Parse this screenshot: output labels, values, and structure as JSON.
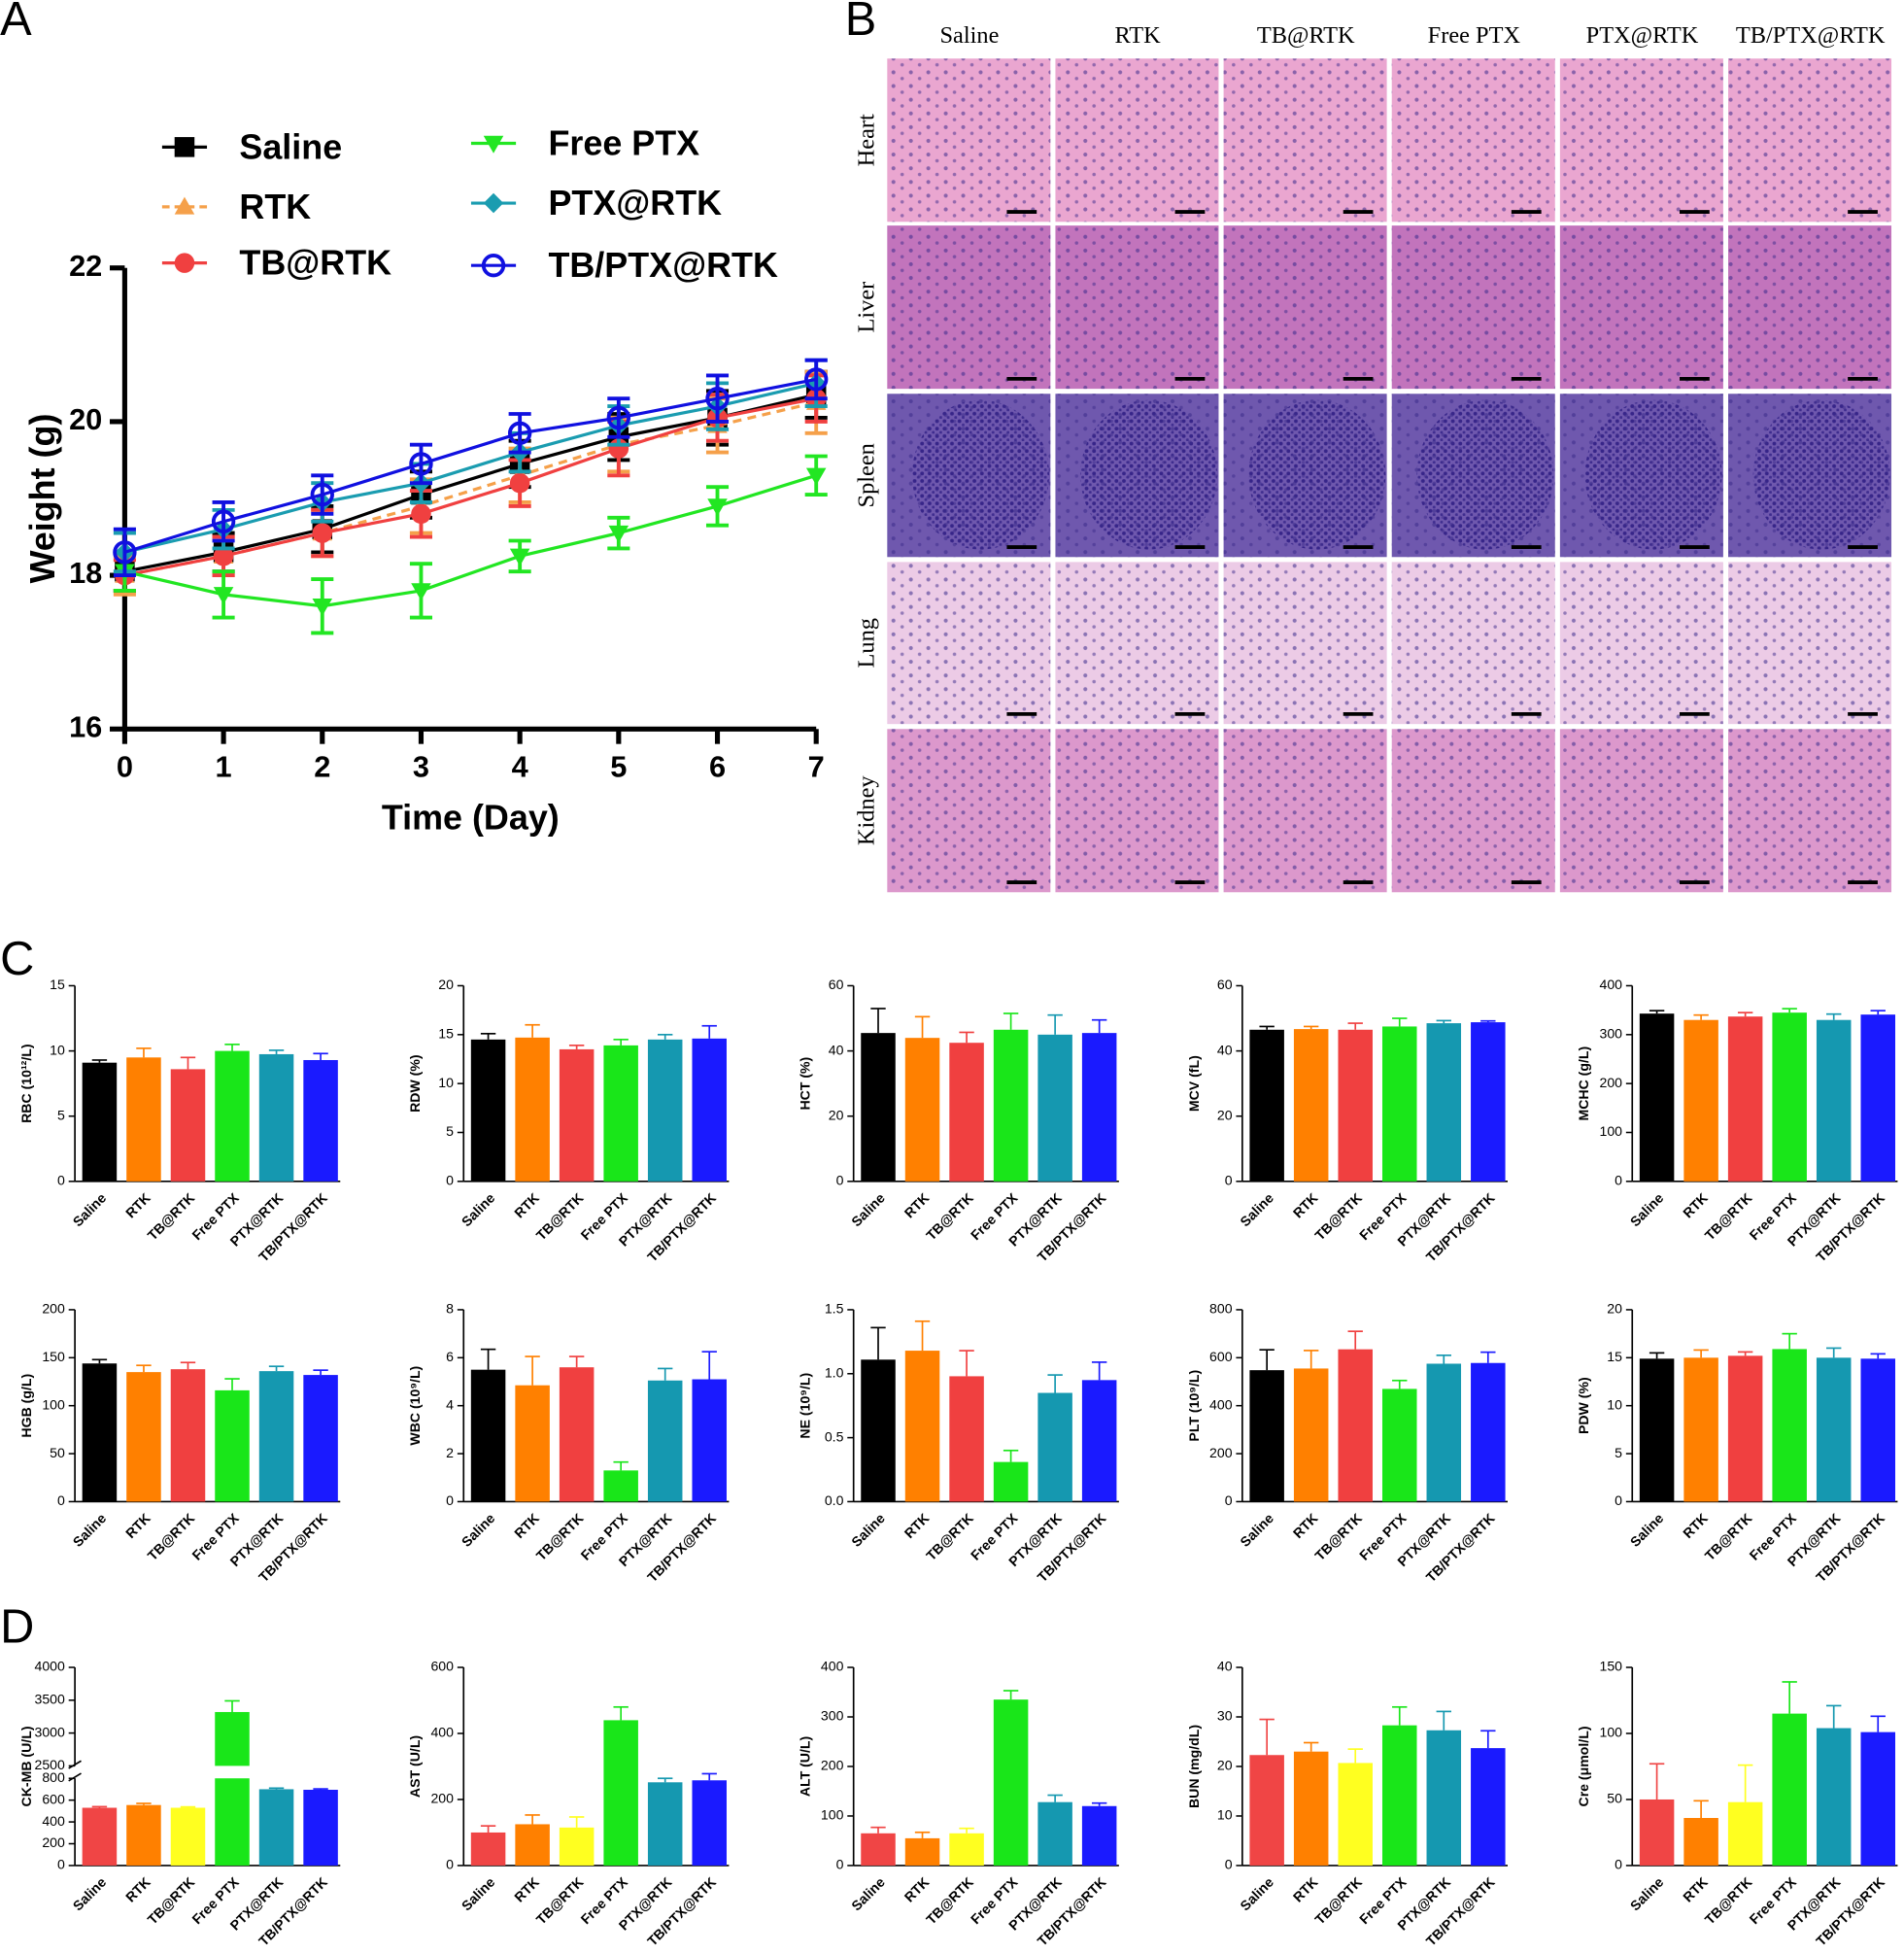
{
  "panel_labels": [
    "A",
    "B",
    "C",
    "D"
  ],
  "histology": {
    "columns": [
      "Saline",
      "RTK",
      "TB@RTK",
      "Free PTX",
      "PTX@RTK",
      "TB/PTX@RTK"
    ],
    "rows": [
      "Heart",
      "Liver",
      "Spleen",
      "Lung",
      "Kidney"
    ]
  },
  "chart_data": [
    {
      "type": "line",
      "xlabel": "Time (Day)",
      "ylabel": "Weight (g)",
      "x": [
        0,
        1,
        2,
        3,
        4,
        5,
        6,
        7
      ],
      "xlim": [
        0,
        7
      ],
      "xticks": [
        0,
        1,
        2,
        3,
        4,
        5,
        6,
        7
      ],
      "ylim": [
        16,
        22
      ],
      "yticks": [
        16,
        18,
        20,
        22
      ],
      "series": [
        {
          "name": "Saline",
          "color": "#000000",
          "marker": "square",
          "dashed": false,
          "values": [
            18.05,
            18.3,
            18.6,
            19.05,
            19.45,
            19.8,
            20.05,
            20.35
          ],
          "errors": [
            0.25,
            0.25,
            0.3,
            0.3,
            0.3,
            0.3,
            0.35,
            0.3
          ]
        },
        {
          "name": "RTK",
          "color": "#f5a04a",
          "marker": "triangle",
          "dashed": true,
          "values": [
            18.0,
            18.25,
            18.55,
            18.9,
            19.3,
            19.7,
            19.95,
            20.25
          ],
          "errors": [
            0.25,
            0.25,
            0.3,
            0.35,
            0.35,
            0.35,
            0.35,
            0.4
          ]
        },
        {
          "name": "TB@RTK",
          "color": "#f04040",
          "marker": "circle",
          "dashed": false,
          "values": [
            18.0,
            18.25,
            18.55,
            18.8,
            19.2,
            19.65,
            20.05,
            20.3
          ],
          "errors": [
            0.2,
            0.25,
            0.3,
            0.3,
            0.3,
            0.35,
            0.3,
            0.3
          ]
        },
        {
          "name": "Free PTX",
          "color": "#22e622",
          "marker": "down-triangle",
          "dashed": false,
          "values": [
            18.05,
            17.75,
            17.6,
            17.8,
            18.25,
            18.55,
            18.9,
            19.3
          ],
          "errors": [
            0.25,
            0.3,
            0.35,
            0.35,
            0.2,
            0.2,
            0.25,
            0.25
          ]
        },
        {
          "name": "PTX@RTK",
          "color": "#1a9cb0",
          "marker": "diamond",
          "dashed": false,
          "values": [
            18.3,
            18.6,
            18.95,
            19.2,
            19.6,
            19.95,
            20.2,
            20.5
          ],
          "errors": [
            0.25,
            0.25,
            0.25,
            0.25,
            0.25,
            0.25,
            0.3,
            0.3
          ]
        },
        {
          "name": "TB/PTX@RTK",
          "color": "#1010e0",
          "marker": "open-circle",
          "dashed": false,
          "values": [
            18.3,
            18.7,
            19.05,
            19.45,
            19.85,
            20.05,
            20.3,
            20.55
          ],
          "errors": [
            0.3,
            0.25,
            0.25,
            0.25,
            0.25,
            0.25,
            0.3,
            0.25
          ]
        }
      ]
    },
    {
      "type": "bar",
      "ylabel": "RBC (10¹²/L)",
      "categories": [
        "Saline",
        "RTK",
        "TB@RTK",
        "Free PTX",
        "PTX@RTK",
        "TB/PTX@RTK"
      ],
      "colors": [
        "#000000",
        "#ff8000",
        "#f04040",
        "#19e619",
        "#1598b0",
        "#1a1aff"
      ],
      "values": [
        9.1,
        9.5,
        8.6,
        10.0,
        9.75,
        9.3
      ],
      "errors": [
        0.2,
        0.7,
        0.9,
        0.5,
        0.3,
        0.5
      ],
      "ylim": [
        0,
        15
      ],
      "yticks": [
        0,
        5,
        10,
        15
      ]
    },
    {
      "type": "bar",
      "ylabel": "RDW (%)",
      "categories": [
        "Saline",
        "RTK",
        "TB@RTK",
        "Free PTX",
        "PTX@RTK",
        "TB/PTX@RTK"
      ],
      "colors": [
        "#000000",
        "#ff8000",
        "#f04040",
        "#19e619",
        "#1598b0",
        "#1a1aff"
      ],
      "values": [
        14.5,
        14.7,
        13.5,
        13.9,
        14.5,
        14.6
      ],
      "errors": [
        0.6,
        1.3,
        0.4,
        0.6,
        0.5,
        1.3
      ],
      "ylim": [
        0,
        20
      ],
      "yticks": [
        0,
        5,
        10,
        15,
        20
      ]
    },
    {
      "type": "bar",
      "ylabel": "HCT (%)",
      "categories": [
        "Saline",
        "RTK",
        "TB@RTK",
        "Free PTX",
        "PTX@RTK",
        "TB/PTX@RTK"
      ],
      "colors": [
        "#000000",
        "#ff8000",
        "#f04040",
        "#19e619",
        "#1598b0",
        "#1a1aff"
      ],
      "values": [
        45.5,
        44,
        42.5,
        46.5,
        45,
        45.5
      ],
      "errors": [
        7.5,
        6.5,
        3.2,
        5,
        6,
        4
      ],
      "ylim": [
        0,
        60
      ],
      "yticks": [
        0,
        20,
        40,
        60
      ]
    },
    {
      "type": "bar",
      "ylabel": "MCV (fL)",
      "categories": [
        "Saline",
        "RTK",
        "TB@RTK",
        "Free PTX",
        "PTX@RTK",
        "TB/PTX@RTK"
      ],
      "colors": [
        "#000000",
        "#ff8000",
        "#f04040",
        "#19e619",
        "#1598b0",
        "#1a1aff"
      ],
      "values": [
        46.5,
        46.7,
        46.5,
        47.5,
        48.5,
        48.8
      ],
      "errors": [
        1,
        0.8,
        2,
        2.5,
        0.8,
        0.4
      ],
      "ylim": [
        0,
        60
      ],
      "yticks": [
        0,
        20,
        40,
        60
      ]
    },
    {
      "type": "bar",
      "ylabel": "MCHC (g/L)",
      "categories": [
        "Saline",
        "RTK",
        "TB@RTK",
        "Free PTX",
        "PTX@RTK",
        "TB/PTX@RTK"
      ],
      "colors": [
        "#000000",
        "#ff8000",
        "#f04040",
        "#19e619",
        "#1598b0",
        "#1a1aff"
      ],
      "values": [
        343,
        330,
        337,
        345,
        330,
        341
      ],
      "errors": [
        6,
        10,
        8,
        8,
        12,
        8
      ],
      "ylim": [
        0,
        400
      ],
      "yticks": [
        0,
        100,
        200,
        300,
        400
      ]
    },
    {
      "type": "bar",
      "ylabel": "HGB (g/L)",
      "categories": [
        "Saline",
        "RTK",
        "TB@RTK",
        "Free PTX",
        "PTX@RTK",
        "TB/PTX@RTK"
      ],
      "colors": [
        "#000000",
        "#ff8000",
        "#f04040",
        "#19e619",
        "#1598b0",
        "#1a1aff"
      ],
      "values": [
        144,
        135,
        138,
        116,
        136,
        132
      ],
      "errors": [
        4,
        7,
        7,
        12,
        5,
        5
      ],
      "ylim": [
        0,
        200
      ],
      "yticks": [
        0,
        50,
        100,
        150,
        200
      ]
    },
    {
      "type": "bar",
      "ylabel": "WBC (10⁹/L)",
      "categories": [
        "Saline",
        "RTK",
        "TB@RTK",
        "Free PTX",
        "PTX@RTK",
        "TB/PTX@RTK"
      ],
      "colors": [
        "#000000",
        "#ff8000",
        "#f04040",
        "#19e619",
        "#1598b0",
        "#1a1aff"
      ],
      "values": [
        5.5,
        4.85,
        5.6,
        1.3,
        5.05,
        5.1
      ],
      "errors": [
        0.85,
        1.2,
        0.45,
        0.35,
        0.5,
        1.15
      ],
      "ylim": [
        0,
        8
      ],
      "yticks": [
        0,
        2,
        4,
        6,
        8
      ]
    },
    {
      "type": "bar",
      "ylabel": "NE (10⁹/L)",
      "categories": [
        "Saline",
        "RTK",
        "TB@RTK",
        "Free PTX",
        "PTX@RTK",
        "TB/PTX@RTK"
      ],
      "colors": [
        "#000000",
        "#ff8000",
        "#f04040",
        "#19e619",
        "#1598b0",
        "#1a1aff"
      ],
      "values": [
        1.11,
        1.18,
        0.98,
        0.31,
        0.85,
        0.95
      ],
      "errors": [
        0.25,
        0.23,
        0.2,
        0.09,
        0.14,
        0.14
      ],
      "ylim": [
        0,
        1.5
      ],
      "yticks": [
        {
          "value": 0,
          "label": "0.0"
        },
        0.5,
        {
          "value": 1,
          "label": "1.0"
        },
        1.5
      ]
    },
    {
      "type": "bar",
      "ylabel": "PLT (10⁹/L)",
      "categories": [
        "Saline",
        "RTK",
        "TB@RTK",
        "Free PTX",
        "PTX@RTK",
        "TB/PTX@RTK"
      ],
      "colors": [
        "#000000",
        "#ff8000",
        "#f04040",
        "#19e619",
        "#1598b0",
        "#1a1aff"
      ],
      "values": [
        548,
        555,
        635,
        470,
        575,
        578
      ],
      "errors": [
        85,
        75,
        75,
        35,
        35,
        45
      ],
      "ylim": [
        0,
        800
      ],
      "yticks": [
        0,
        200,
        400,
        600,
        800
      ]
    },
    {
      "type": "bar",
      "ylabel": "PDW (%)",
      "categories": [
        "Saline",
        "RTK",
        "TB@RTK",
        "Free PTX",
        "PTX@RTK",
        "TB/PTX@RTK"
      ],
      "colors": [
        "#000000",
        "#ff8000",
        "#f04040",
        "#19e619",
        "#1598b0",
        "#1a1aff"
      ],
      "values": [
        14.9,
        15.0,
        15.2,
        15.9,
        15.0,
        14.9
      ],
      "errors": [
        0.6,
        0.8,
        0.4,
        1.6,
        1.0,
        0.5
      ],
      "ylim": [
        0,
        20
      ],
      "yticks": [
        0,
        5,
        10,
        15,
        20
      ]
    },
    {
      "type": "bar",
      "ylabel": "CK-MB (U/L)",
      "categories": [
        "Saline",
        "RTK",
        "TB@RTK",
        "Free PTX",
        "PTX@RTK",
        "TB/PTX@RTK"
      ],
      "colors": [
        "#f04545",
        "#ff8000",
        "#ffff20",
        "#19e619",
        "#1598b0",
        "#1a1aff"
      ],
      "values": [
        530,
        555,
        530,
        3320,
        700,
        695
      ],
      "errors": [
        10,
        15,
        8,
        170,
        10,
        8
      ],
      "ylim": [
        0,
        4000
      ],
      "ybreak": [
        800,
        2500
      ],
      "yticks": [
        0,
        200,
        400,
        600,
        800,
        2500,
        3000,
        3500,
        4000
      ]
    },
    {
      "type": "bar",
      "ylabel": "AST (U/L)",
      "categories": [
        "Saline",
        "RTK",
        "TB@RTK",
        "Free PTX",
        "PTX@RTK",
        "TB/PTX@RTK"
      ],
      "colors": [
        "#f04545",
        "#ff8000",
        "#ffff20",
        "#19e619",
        "#1598b0",
        "#1a1aff"
      ],
      "values": [
        100,
        125,
        115,
        440,
        252,
        258
      ],
      "errors": [
        20,
        28,
        32,
        40,
        12,
        20
      ],
      "ylim": [
        0,
        600
      ],
      "yticks": [
        0,
        200,
        400,
        600
      ]
    },
    {
      "type": "bar",
      "ylabel": "ALT (U/L)",
      "categories": [
        "Saline",
        "RTK",
        "TB@RTK",
        "Free PTX",
        "PTX@RTK",
        "TB/PTX@RTK"
      ],
      "colors": [
        "#f04545",
        "#ff8000",
        "#ffff20",
        "#19e619",
        "#1598b0",
        "#1a1aff"
      ],
      "values": [
        65,
        55,
        65,
        335,
        128,
        120
      ],
      "errors": [
        12,
        12,
        10,
        18,
        14,
        6
      ],
      "ylim": [
        0,
        400
      ],
      "yticks": [
        0,
        100,
        200,
        300,
        400
      ]
    },
    {
      "type": "bar",
      "ylabel": "BUN (mg/dL)",
      "categories": [
        "Saline",
        "RTK",
        "TB@RTK",
        "Free PTX",
        "PTX@RTK",
        "TB/PTX@RTK"
      ],
      "colors": [
        "#f04545",
        "#ff8000",
        "#ffff20",
        "#19e619",
        "#1598b0",
        "#1a1aff"
      ],
      "values": [
        22.3,
        23,
        20.7,
        28.3,
        27.3,
        23.7
      ],
      "errors": [
        7.2,
        1.8,
        2.8,
        3.7,
        3.8,
        3.5
      ],
      "ylim": [
        0,
        40
      ],
      "yticks": [
        0,
        10,
        20,
        30,
        40
      ]
    },
    {
      "type": "bar",
      "ylabel": "Cre (μmol/L)",
      "categories": [
        "Saline",
        "RTK",
        "TB@RTK",
        "Free PTX",
        "PTX@RTK",
        "TB/PTX@RTK"
      ],
      "colors": [
        "#f04545",
        "#ff8000",
        "#ffff20",
        "#19e619",
        "#1598b0",
        "#1a1aff"
      ],
      "values": [
        50,
        36,
        48,
        115,
        104,
        101
      ],
      "errors": [
        27,
        13,
        28,
        24,
        17,
        12
      ],
      "ylim": [
        0,
        150
      ],
      "yticks": [
        0,
        50,
        100,
        150
      ]
    }
  ]
}
